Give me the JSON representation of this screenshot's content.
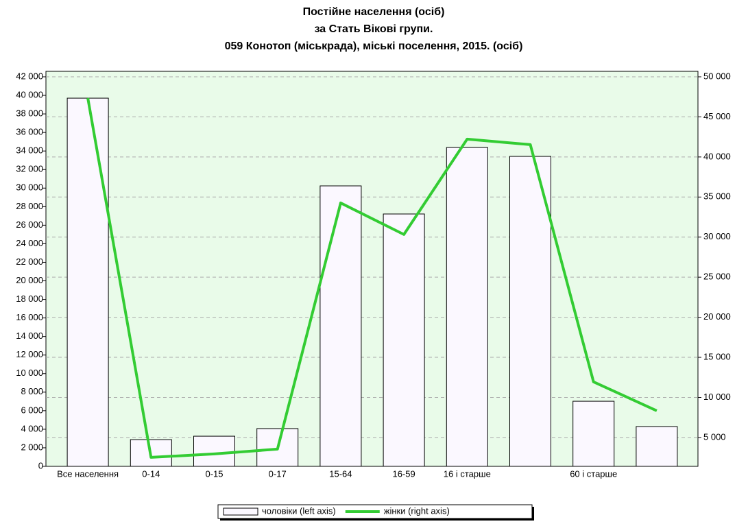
{
  "chart_data": {
    "type": "bar",
    "title": [
      "Постійне населення (осіб)",
      "за Стать  Вікові групи.",
      "059 Конотоп (міськрада),  міські поселення, 2015. (осіб)"
    ],
    "categories": [
      "Все населення",
      "0-14",
      "0-15",
      "0-17",
      "15-64",
      "16-59",
      "16 і старше",
      null,
      "60 і старше",
      null
    ],
    "series": [
      {
        "name": "чоловіки (left axis)",
        "type": "bar",
        "color": "#fbf8ff",
        "values": [
          39700,
          2880,
          3250,
          4070,
          30240,
          27210,
          34380,
          33420,
          7020,
          4290
        ]
      },
      {
        "name": "жінки (right axis)",
        "type": "line",
        "axis": "y2",
        "color": "#33cc33",
        "values": [
          47350,
          2520,
          2950,
          3550,
          34260,
          30330,
          42220,
          41540,
          11940,
          8340
        ]
      }
    ],
    "ylim": [
      0,
      42000
    ],
    "yticks": [
      0,
      {
        "value": 2000,
        "label": "2 000"
      },
      {
        "value": 4000,
        "label": "4 000"
      },
      {
        "value": 6000,
        "label": "6 000"
      },
      {
        "value": 8000,
        "label": "8 000"
      },
      {
        "value": 10000,
        "label": "10 000"
      },
      {
        "value": 12000,
        "label": "12 000"
      },
      {
        "value": 14000,
        "label": "14 000"
      },
      {
        "value": 16000,
        "label": "16 000"
      },
      {
        "value": 18000,
        "label": "18 000"
      },
      {
        "value": 20000,
        "label": "20 000"
      },
      {
        "value": 22000,
        "label": "22 000"
      },
      {
        "value": 24000,
        "label": "24 000"
      },
      {
        "value": 26000,
        "label": "26 000"
      },
      {
        "value": 28000,
        "label": "28 000"
      },
      {
        "value": 30000,
        "label": "30 000"
      },
      {
        "value": 32000,
        "label": "32 000"
      },
      {
        "value": 34000,
        "label": "34 000"
      },
      {
        "value": 36000,
        "label": "36 000"
      },
      {
        "value": 38000,
        "label": "38 000"
      },
      {
        "value": 40000,
        "label": "40 000"
      },
      {
        "value": 42000,
        "label": "42 000"
      }
    ],
    "y2lim": [
      1400,
      50000
    ],
    "y2ticks": [
      {
        "value": 5000,
        "label": "5 000"
      },
      {
        "value": 10000,
        "label": "10 000"
      },
      {
        "value": 15000,
        "label": "15 000"
      },
      {
        "value": 20000,
        "label": "20 000"
      },
      {
        "value": 25000,
        "label": "25 000"
      },
      {
        "value": 30000,
        "label": "30 000"
      },
      {
        "value": 35000,
        "label": "35 000"
      },
      {
        "value": 40000,
        "label": "40 000"
      },
      {
        "value": 45000,
        "label": "45 000"
      },
      {
        "value": 50000,
        "label": "50 000"
      }
    ],
    "grid": true,
    "legend": "bottom"
  }
}
